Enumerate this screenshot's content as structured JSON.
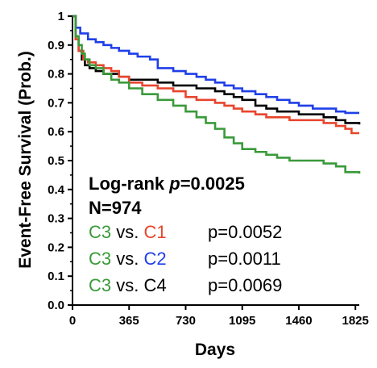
{
  "chart_data": {
    "type": "line",
    "xlabel": "Days",
    "ylabel": "Event-Free Survival (Prob.)",
    "xlim": [
      0,
      1850
    ],
    "ylim": [
      0,
      1
    ],
    "x_ticks": [
      "0",
      "365",
      "730",
      "1095",
      "1460",
      "1825"
    ],
    "x_tick_values": [
      0,
      365,
      730,
      1095,
      1460,
      1825
    ],
    "y_ticks": [
      "0.0",
      "0.1",
      "0.2",
      "0.3",
      "0.4",
      "0.5",
      "0.6",
      "0.7",
      "0.8",
      "0.9",
      "1"
    ],
    "y_tick_values": [
      0,
      0.1,
      0.2,
      0.3,
      0.4,
      0.5,
      0.6,
      0.7,
      0.8,
      0.9,
      1.0
    ],
    "grid": false,
    "series": [
      {
        "name": "C4",
        "color": "#000000",
        "points": [
          [
            0,
            1.0
          ],
          [
            20,
            0.93
          ],
          [
            40,
            0.88
          ],
          [
            60,
            0.85
          ],
          [
            80,
            0.83
          ],
          [
            110,
            0.82
          ],
          [
            150,
            0.81
          ],
          [
            200,
            0.8
          ],
          [
            250,
            0.8
          ],
          [
            300,
            0.79
          ],
          [
            365,
            0.78
          ],
          [
            450,
            0.78
          ],
          [
            550,
            0.77
          ],
          [
            650,
            0.76
          ],
          [
            730,
            0.76
          ],
          [
            800,
            0.75
          ],
          [
            860,
            0.75
          ],
          [
            920,
            0.74
          ],
          [
            980,
            0.73
          ],
          [
            1040,
            0.72
          ],
          [
            1095,
            0.71
          ],
          [
            1180,
            0.69
          ],
          [
            1250,
            0.68
          ],
          [
            1320,
            0.67
          ],
          [
            1400,
            0.67
          ],
          [
            1460,
            0.66
          ],
          [
            1550,
            0.66
          ],
          [
            1620,
            0.65
          ],
          [
            1700,
            0.64
          ],
          [
            1760,
            0.63
          ],
          [
            1850,
            0.625
          ]
        ]
      },
      {
        "name": "C1",
        "color": "#e8452c",
        "points": [
          [
            0,
            1.0
          ],
          [
            20,
            0.92
          ],
          [
            40,
            0.88
          ],
          [
            70,
            0.85
          ],
          [
            100,
            0.84
          ],
          [
            150,
            0.83
          ],
          [
            200,
            0.82
          ],
          [
            250,
            0.81
          ],
          [
            300,
            0.79
          ],
          [
            365,
            0.77
          ],
          [
            450,
            0.76
          ],
          [
            550,
            0.75
          ],
          [
            650,
            0.74
          ],
          [
            730,
            0.72
          ],
          [
            800,
            0.71
          ],
          [
            860,
            0.71
          ],
          [
            920,
            0.7
          ],
          [
            980,
            0.69
          ],
          [
            1040,
            0.68
          ],
          [
            1095,
            0.67
          ],
          [
            1180,
            0.66
          ],
          [
            1250,
            0.65
          ],
          [
            1320,
            0.65
          ],
          [
            1400,
            0.64
          ],
          [
            1460,
            0.64
          ],
          [
            1550,
            0.64
          ],
          [
            1620,
            0.63
          ],
          [
            1700,
            0.62
          ],
          [
            1760,
            0.61
          ],
          [
            1800,
            0.595
          ],
          [
            1850,
            0.595
          ]
        ]
      },
      {
        "name": "C2",
        "color": "#1f3fe8",
        "points": [
          [
            0,
            1.0
          ],
          [
            20,
            0.96
          ],
          [
            50,
            0.94
          ],
          [
            100,
            0.92
          ],
          [
            150,
            0.91
          ],
          [
            200,
            0.9
          ],
          [
            250,
            0.89
          ],
          [
            300,
            0.88
          ],
          [
            365,
            0.87
          ],
          [
            420,
            0.86
          ],
          [
            500,
            0.85
          ],
          [
            550,
            0.82
          ],
          [
            650,
            0.81
          ],
          [
            730,
            0.8
          ],
          [
            800,
            0.79
          ],
          [
            860,
            0.78
          ],
          [
            920,
            0.77
          ],
          [
            980,
            0.76
          ],
          [
            1040,
            0.75
          ],
          [
            1095,
            0.74
          ],
          [
            1180,
            0.73
          ],
          [
            1250,
            0.72
          ],
          [
            1320,
            0.71
          ],
          [
            1400,
            0.7
          ],
          [
            1460,
            0.69
          ],
          [
            1550,
            0.68
          ],
          [
            1620,
            0.68
          ],
          [
            1700,
            0.67
          ],
          [
            1760,
            0.665
          ],
          [
            1850,
            0.665
          ]
        ]
      },
      {
        "name": "C3",
        "color": "#3a9a3a",
        "points": [
          [
            0,
            1.0
          ],
          [
            20,
            0.93
          ],
          [
            40,
            0.9
          ],
          [
            60,
            0.87
          ],
          [
            80,
            0.85
          ],
          [
            110,
            0.83
          ],
          [
            150,
            0.82
          ],
          [
            200,
            0.8
          ],
          [
            250,
            0.78
          ],
          [
            300,
            0.77
          ],
          [
            365,
            0.75
          ],
          [
            450,
            0.73
          ],
          [
            550,
            0.71
          ],
          [
            650,
            0.69
          ],
          [
            730,
            0.67
          ],
          [
            800,
            0.65
          ],
          [
            860,
            0.63
          ],
          [
            920,
            0.61
          ],
          [
            980,
            0.58
          ],
          [
            1040,
            0.56
          ],
          [
            1095,
            0.54
          ],
          [
            1180,
            0.53
          ],
          [
            1250,
            0.52
          ],
          [
            1320,
            0.51
          ],
          [
            1400,
            0.5
          ],
          [
            1460,
            0.5
          ],
          [
            1550,
            0.5
          ],
          [
            1620,
            0.49
          ],
          [
            1700,
            0.48
          ],
          [
            1760,
            0.46
          ],
          [
            1850,
            0.455
          ]
        ]
      }
    ],
    "annotations": {
      "logrank_prefix": "Log-rank ",
      "logrank_p": "p",
      "logrank_value": "=0.0025",
      "n_text": "N=974",
      "comparisons": [
        {
          "a": "C3",
          "a_color": "#3a9a3a",
          "vs": " vs. ",
          "b": "C1",
          "b_color": "#e8452c",
          "p": "p=0.0052"
        },
        {
          "a": "C3",
          "a_color": "#3a9a3a",
          "vs": " vs. ",
          "b": "C2",
          "b_color": "#1f3fe8",
          "p": "p=0.0011"
        },
        {
          "a": "C3",
          "a_color": "#3a9a3a",
          "vs": " vs. ",
          "b": "C4",
          "b_color": "#000000",
          "p": "p=0.0069"
        }
      ]
    }
  }
}
